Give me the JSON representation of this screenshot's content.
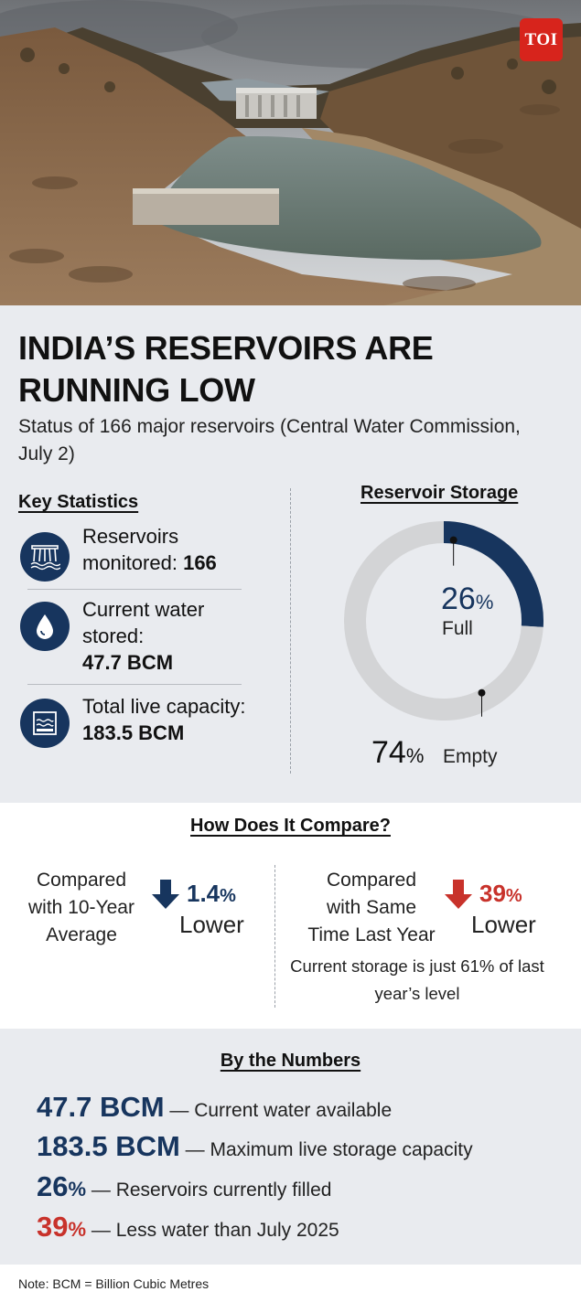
{
  "brand": {
    "logo_text": "TOI",
    "color": "#d7241c"
  },
  "headline": {
    "title": "INDIA’S RESERVOIRS ARE RUNNING LOW",
    "subtitle": "Status of 166 major reservoirs (Central Water Commission, July 2)"
  },
  "key_statistics": {
    "heading": "Key Statistics",
    "items": [
      {
        "icon": "dam-icon",
        "label": "Reservoirs monitored:",
        "value": "166"
      },
      {
        "icon": "water-drop-icon",
        "label": "Current water stored:",
        "value": "47.7 BCM"
      },
      {
        "icon": "reservoir-tank-icon",
        "label": "Total live capacity:",
        "value": "183.5 BCM"
      }
    ]
  },
  "reservoir_storage": {
    "heading": "Reservoir Storage",
    "full_value": "26",
    "full_label": "Full",
    "empty_value": "74",
    "empty_label": "Empty",
    "percent_sign": "%"
  },
  "chart_data": {
    "type": "pie",
    "title": "Reservoir Storage",
    "categories": [
      "Full",
      "Empty"
    ],
    "values": [
      26,
      74
    ],
    "colors": [
      "#17355e",
      "#d3d4d6"
    ]
  },
  "comparison": {
    "heading": "How Does It Compare?",
    "left": {
      "label": "Compared with 10-Year Average",
      "value": "1.4",
      "unit": "%",
      "direction": "Lower",
      "color": "#17355e"
    },
    "right": {
      "label": "Compared with Same Time Last Year",
      "value": "39",
      "unit": "%",
      "direction": "Lower",
      "color": "#c8322b",
      "note": "Current storage is just 61% of last year’s level"
    }
  },
  "by_the_numbers": {
    "heading": "By the Numbers",
    "rows": [
      {
        "value": "47.7 BCM",
        "unit": "",
        "text": " — Current water available",
        "color": "#17355e"
      },
      {
        "value": "183.5 BCM",
        "unit": "",
        "text": " — Maximum live storage capacity",
        "color": "#17355e"
      },
      {
        "value": "26",
        "unit": "%",
        "text": " — Reservoirs currently filled",
        "color": "#17355e"
      },
      {
        "value": "39",
        "unit": "%",
        "text": " — Less water than July 2025",
        "color": "#c8322b"
      }
    ]
  },
  "footnote": "Note: BCM = Billion Cubic Metres",
  "colors": {
    "navy": "#17355e",
    "red": "#c8322b",
    "panel": "#e9ebef"
  }
}
